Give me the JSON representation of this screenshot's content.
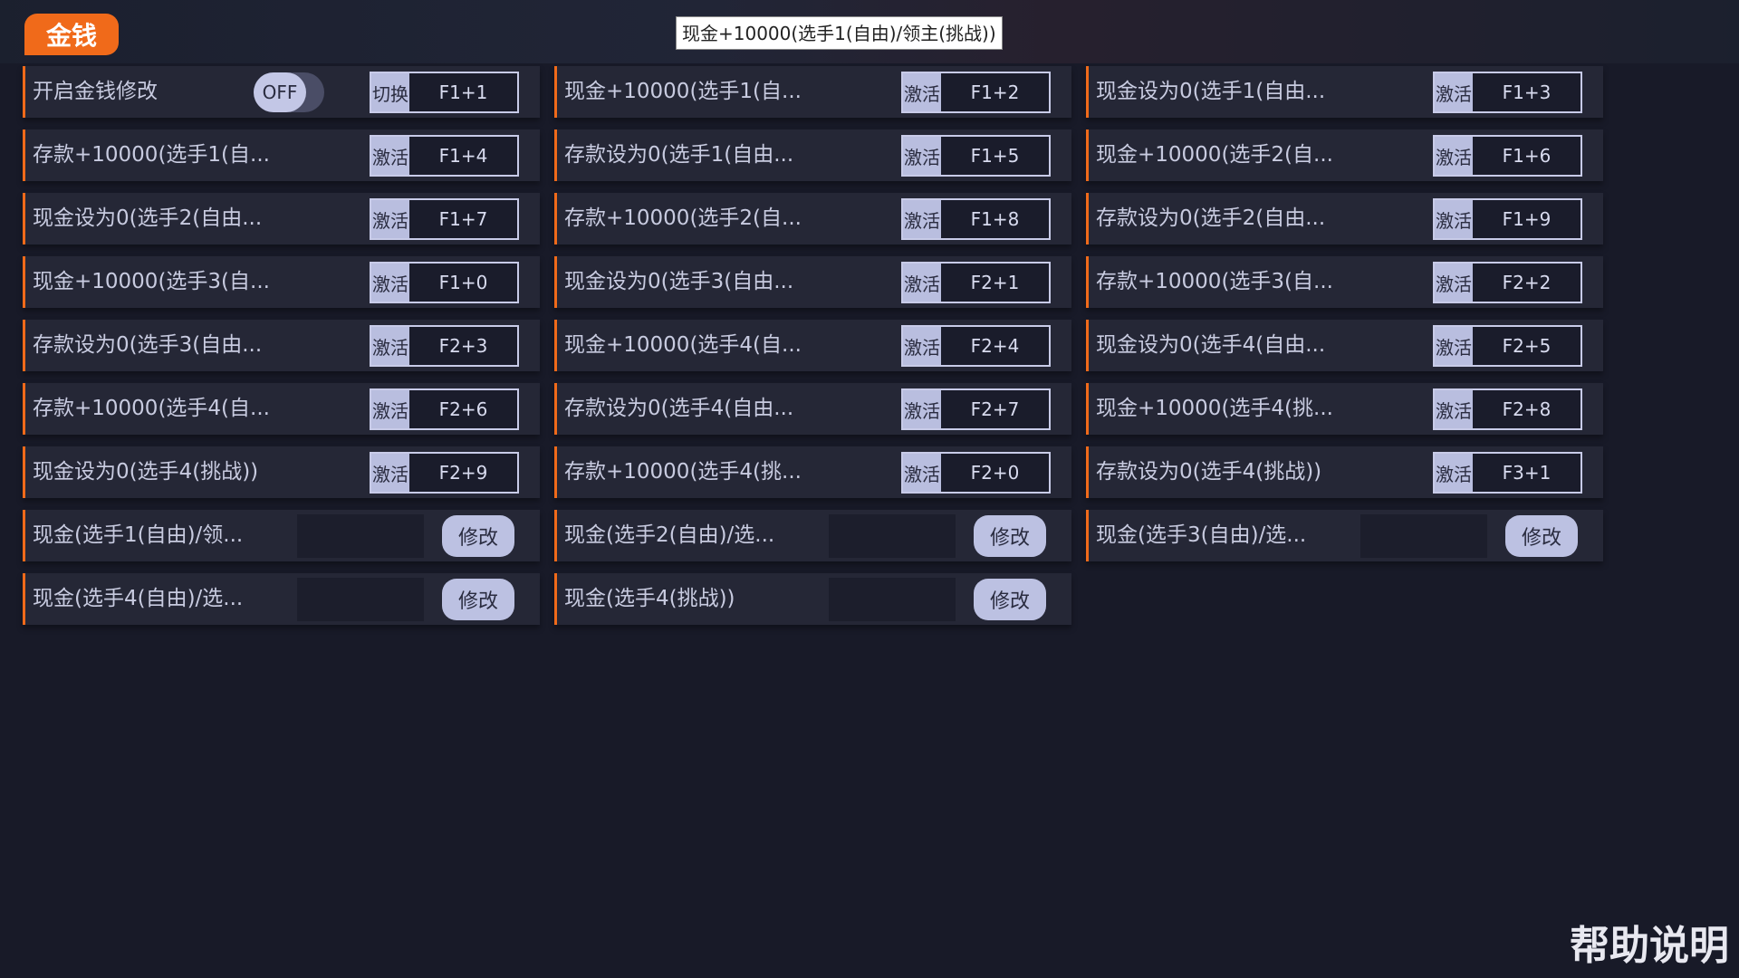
{
  "tab": {
    "label": "金钱"
  },
  "colors": {
    "accent": "#f06a1a",
    "background": "#181a28",
    "row": "#252736",
    "button": "#bcc1e2"
  },
  "cells": [
    {
      "type": "toggle",
      "label": "开启金钱修改",
      "state": "OFF",
      "action": "切换",
      "key": "F1+1"
    },
    {
      "type": "hotkey",
      "label": "现金+10000(选手1(自...",
      "action": "激活",
      "key": "F1+2"
    },
    {
      "type": "hotkey",
      "label": "现金设为0(选手1(自由...",
      "action": "激活",
      "key": "F1+3"
    },
    {
      "type": "hotkey",
      "label": "存款+10000(选手1(自...",
      "action": "激活",
      "key": "F1+4"
    },
    {
      "type": "hotkey",
      "label": "存款设为0(选手1(自由...",
      "action": "激活",
      "key": "F1+5"
    },
    {
      "type": "hotkey",
      "label": "现金+10000(选手2(自...",
      "action": "激活",
      "key": "F1+6"
    },
    {
      "type": "hotkey",
      "label": "现金设为0(选手2(自由...",
      "action": "激活",
      "key": "F1+7"
    },
    {
      "type": "hotkey",
      "label": "存款+10000(选手2(自...",
      "action": "激活",
      "key": "F1+8"
    },
    {
      "type": "hotkey",
      "label": "存款设为0(选手2(自由...",
      "action": "激活",
      "key": "F1+9"
    },
    {
      "type": "hotkey",
      "label": "现金+10000(选手3(自...",
      "action": "激活",
      "key": "F1+0"
    },
    {
      "type": "hotkey",
      "label": "现金设为0(选手3(自由...",
      "action": "激活",
      "key": "F2+1"
    },
    {
      "type": "hotkey",
      "label": "存款+10000(选手3(自...",
      "action": "激活",
      "key": "F2+2"
    },
    {
      "type": "hotkey",
      "label": "存款设为0(选手3(自由...",
      "action": "激活",
      "key": "F2+3"
    },
    {
      "type": "hotkey",
      "label": "现金+10000(选手4(自...",
      "action": "激活",
      "key": "F2+4"
    },
    {
      "type": "hotkey",
      "label": "现金设为0(选手4(自由...",
      "action": "激活",
      "key": "F2+5"
    },
    {
      "type": "hotkey",
      "label": "存款+10000(选手4(自...",
      "action": "激活",
      "key": "F2+6"
    },
    {
      "type": "hotkey",
      "label": "存款设为0(选手4(自由...",
      "action": "激活",
      "key": "F2+7"
    },
    {
      "type": "hotkey",
      "label": "现金+10000(选手4(挑...",
      "action": "激活",
      "key": "F2+8"
    },
    {
      "type": "hotkey",
      "label": "现金设为0(选手4(挑战))",
      "action": "激活",
      "key": "F2+9"
    },
    {
      "type": "hotkey",
      "label": "存款+10000(选手4(挑...",
      "action": "激活",
      "key": "F2+0"
    },
    {
      "type": "hotkey",
      "label": "存款设为0(选手4(挑战))",
      "action": "激活",
      "key": "F3+1"
    },
    {
      "type": "edit",
      "label": "现金(选手1(自由)/领...",
      "value": "",
      "button": "修改"
    },
    {
      "type": "edit",
      "label": "现金(选手2(自由)/选...",
      "value": "",
      "button": "修改"
    },
    {
      "type": "edit",
      "label": "现金(选手3(自由)/选...",
      "value": "",
      "button": "修改"
    },
    {
      "type": "edit",
      "label": "现金(选手4(自由)/选...",
      "value": "",
      "button": "修改"
    },
    {
      "type": "edit",
      "label": "现金(选手4(挑战))",
      "value": "",
      "button": "修改"
    }
  ],
  "tooltip": "现金+10000(选手1(自由)/领主(挑战))",
  "help": "帮助说明"
}
